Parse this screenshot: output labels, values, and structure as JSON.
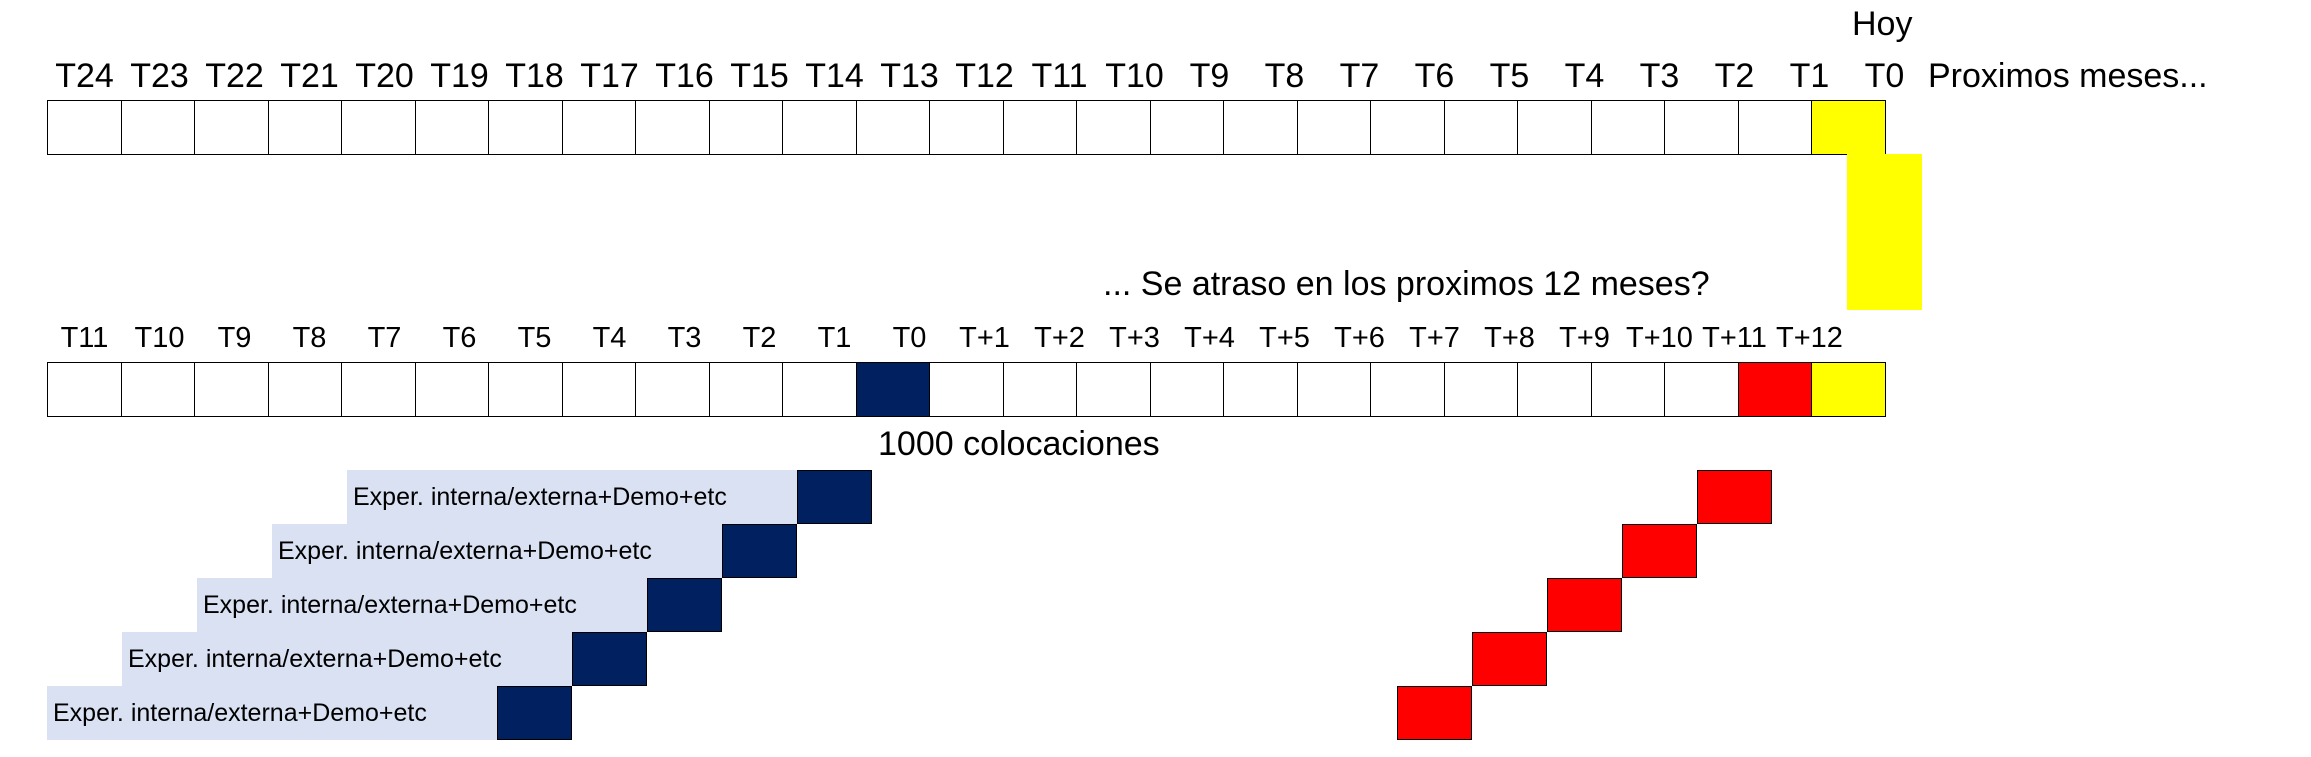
{
  "top_timeline": {
    "today_label": "Hoy",
    "labels": [
      "T24",
      "T23",
      "T22",
      "T21",
      "T20",
      "T19",
      "T18",
      "T17",
      "T16",
      "T15",
      "T14",
      "T13",
      "T12",
      "T11",
      "T10",
      "T9",
      "T8",
      "T7",
      "T6",
      "T5",
      "T4",
      "T3",
      "T2",
      "T1",
      "T0"
    ],
    "next_label": "Proximos meses...",
    "highlight_color": "#ffff00"
  },
  "question": "...   Se atraso en los proximos 12 meses?",
  "bottom_timeline": {
    "labels": [
      "T11",
      "T10",
      "T9",
      "T8",
      "T7",
      "T6",
      "T5",
      "T4",
      "T3",
      "T2",
      "T1",
      "T0",
      "T+1",
      "T+2",
      "T+3",
      "T+4",
      "T+5",
      "T+6",
      "T+7",
      "T+8",
      "T+9",
      "T+10",
      "T+11",
      "T+12"
    ],
    "origin_color": "#002060",
    "default_color": "#ff0000"
  },
  "caption": "1000 colocaciones",
  "staircase": {
    "band_text": "Exper. interna/externa+Demo+etc",
    "band_color": "#d9e1f2",
    "rows": [
      {
        "band_text": "Exper. interna/externa+Demo+etc"
      },
      {
        "band_text": "Exper. interna/externa+Demo+etc"
      },
      {
        "band_text": "Exper. interna/externa+Demo+etc"
      },
      {
        "band_text": "Exper. interna/externa+Demo+etc"
      },
      {
        "band_text": "Exper. interna/externa+Demo+etc"
      }
    ]
  }
}
